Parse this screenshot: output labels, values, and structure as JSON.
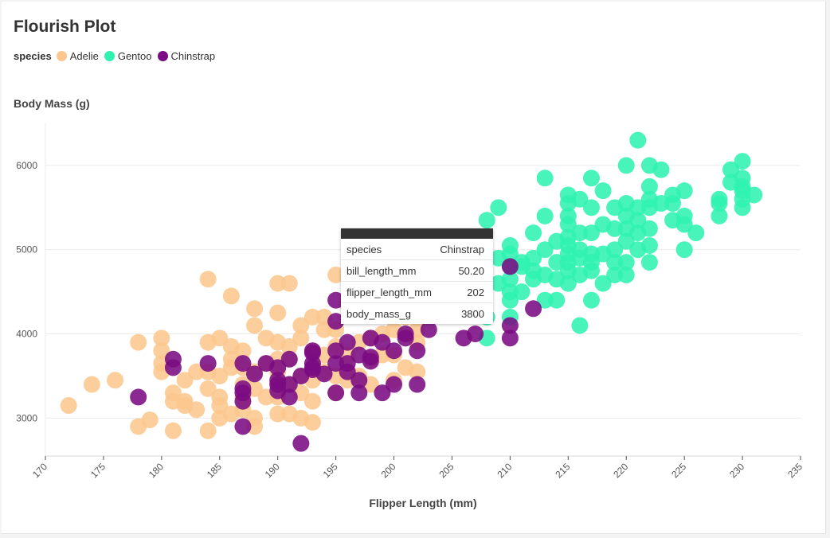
{
  "chart_data": {
    "type": "scatter",
    "title": "Flourish Plot",
    "xlabel": "Flipper Length (mm)",
    "ylabel": "Body Mass (g)",
    "xlim": [
      170,
      235
    ],
    "ylim": [
      2550,
      6500
    ],
    "xticks": [
      170,
      175,
      180,
      185,
      190,
      195,
      200,
      205,
      210,
      215,
      220,
      225,
      230,
      235
    ],
    "yticks": [
      3000,
      4000,
      5000,
      6000
    ],
    "grid": true,
    "legend": {
      "title": "species",
      "placement": "top-left",
      "entries": [
        "Adelie",
        "Gentoo",
        "Chinstrap"
      ]
    },
    "series": [
      {
        "name": "Adelie",
        "color": "#fcc78e",
        "points": [
          [
            172,
            3150
          ],
          [
            174,
            3400
          ],
          [
            176,
            3450
          ],
          [
            178,
            3900
          ],
          [
            178,
            2900
          ],
          [
            179,
            2980
          ],
          [
            180,
            3550
          ],
          [
            180,
            3650
          ],
          [
            180,
            3800
          ],
          [
            180,
            3950
          ],
          [
            181,
            3300
          ],
          [
            181,
            3200
          ],
          [
            181,
            2850
          ],
          [
            182,
            3200
          ],
          [
            182,
            3450
          ],
          [
            182,
            3150
          ],
          [
            183,
            3550
          ],
          [
            183,
            3100
          ],
          [
            184,
            3350
          ],
          [
            184,
            3550
          ],
          [
            184,
            3900
          ],
          [
            184,
            4650
          ],
          [
            184,
            2850
          ],
          [
            185,
            3000
          ],
          [
            185,
            3250
          ],
          [
            185,
            3500
          ],
          [
            185,
            3950
          ],
          [
            185,
            3150
          ],
          [
            186,
            3050
          ],
          [
            186,
            3600
          ],
          [
            186,
            3700
          ],
          [
            186,
            4450
          ],
          [
            186,
            3850
          ],
          [
            187,
            3400
          ],
          [
            187,
            3600
          ],
          [
            187,
            3800
          ],
          [
            187,
            3100
          ],
          [
            187,
            3250
          ],
          [
            188,
            3000
          ],
          [
            188,
            3350
          ],
          [
            188,
            3550
          ],
          [
            188,
            4300
          ],
          [
            188,
            4100
          ],
          [
            188,
            2900
          ],
          [
            189,
            3250
          ],
          [
            189,
            3650
          ],
          [
            189,
            3950
          ],
          [
            190,
            3050
          ],
          [
            190,
            3400
          ],
          [
            190,
            3700
          ],
          [
            190,
            3900
          ],
          [
            190,
            4250
          ],
          [
            190,
            4600
          ],
          [
            190,
            3250
          ],
          [
            190,
            3550
          ],
          [
            191,
            3050
          ],
          [
            191,
            3400
          ],
          [
            191,
            3700
          ],
          [
            191,
            4600
          ],
          [
            191,
            3850
          ],
          [
            192,
            3000
          ],
          [
            192,
            3500
          ],
          [
            192,
            3950
          ],
          [
            192,
            4100
          ],
          [
            192,
            3300
          ],
          [
            193,
            2950
          ],
          [
            193,
            3200
          ],
          [
            193,
            3450
          ],
          [
            193,
            3800
          ],
          [
            193,
            4200
          ],
          [
            194,
            3550
          ],
          [
            194,
            3750
          ],
          [
            194,
            4050
          ],
          [
            194,
            4200
          ],
          [
            195,
            3300
          ],
          [
            195,
            3500
          ],
          [
            195,
            3850
          ],
          [
            195,
            4050
          ],
          [
            195,
            4700
          ],
          [
            196,
            3550
          ],
          [
            196,
            3750
          ],
          [
            196,
            4350
          ],
          [
            196,
            3450
          ],
          [
            197,
            3500
          ],
          [
            197,
            3900
          ],
          [
            197,
            4300
          ],
          [
            198,
            3400
          ],
          [
            198,
            3700
          ],
          [
            198,
            3950
          ],
          [
            199,
            3750
          ],
          [
            199,
            4000
          ],
          [
            200,
            3450
          ],
          [
            200,
            3750
          ],
          [
            200,
            4050
          ],
          [
            201,
            3600
          ],
          [
            201,
            4200
          ],
          [
            202,
            3550
          ],
          [
            202,
            3900
          ],
          [
            202,
            4050
          ]
        ]
      },
      {
        "name": "Gentoo",
        "color": "#2ff2af",
        "points": [
          [
            208,
            4200
          ],
          [
            208,
            5350
          ],
          [
            208,
            3950
          ],
          [
            209,
            4600
          ],
          [
            209,
            4900
          ],
          [
            209,
            5500
          ],
          [
            210,
            4200
          ],
          [
            210,
            4400
          ],
          [
            210,
            4500
          ],
          [
            210,
            4650
          ],
          [
            210,
            4800
          ],
          [
            210,
            4950
          ],
          [
            210,
            5050
          ],
          [
            211,
            4500
          ],
          [
            211,
            4800
          ],
          [
            211,
            4850
          ],
          [
            212,
            4650
          ],
          [
            212,
            4750
          ],
          [
            212,
            4900
          ],
          [
            212,
            5200
          ],
          [
            213,
            4400
          ],
          [
            213,
            4700
          ],
          [
            213,
            5000
          ],
          [
            213,
            5400
          ],
          [
            213,
            5850
          ],
          [
            214,
            4400
          ],
          [
            214,
            4650
          ],
          [
            214,
            4850
          ],
          [
            214,
            5100
          ],
          [
            215,
            4600
          ],
          [
            215,
            4750
          ],
          [
            215,
            4850
          ],
          [
            215,
            4950
          ],
          [
            215,
            5050
          ],
          [
            215,
            5150
          ],
          [
            215,
            5300
          ],
          [
            215,
            5400
          ],
          [
            215,
            5550
          ],
          [
            215,
            5650
          ],
          [
            216,
            4700
          ],
          [
            216,
            4900
          ],
          [
            216,
            5000
          ],
          [
            216,
            5200
          ],
          [
            216,
            5600
          ],
          [
            216,
            4100
          ],
          [
            217,
            4750
          ],
          [
            217,
            4850
          ],
          [
            217,
            4950
          ],
          [
            217,
            5200
          ],
          [
            217,
            5500
          ],
          [
            217,
            5850
          ],
          [
            217,
            4400
          ],
          [
            218,
            4600
          ],
          [
            218,
            4950
          ],
          [
            218,
            5300
          ],
          [
            218,
            5700
          ],
          [
            219,
            4700
          ],
          [
            219,
            4850
          ],
          [
            219,
            5000
          ],
          [
            219,
            5250
          ],
          [
            219,
            5500
          ],
          [
            220,
            4700
          ],
          [
            220,
            4850
          ],
          [
            220,
            5100
          ],
          [
            220,
            5250
          ],
          [
            220,
            5400
          ],
          [
            220,
            5550
          ],
          [
            220,
            6000
          ],
          [
            221,
            5000
          ],
          [
            221,
            5200
          ],
          [
            221,
            5350
          ],
          [
            221,
            5500
          ],
          [
            221,
            6300
          ],
          [
            222,
            4850
          ],
          [
            222,
            5050
          ],
          [
            222,
            5250
          ],
          [
            222,
            5500
          ],
          [
            222,
            5600
          ],
          [
            222,
            5750
          ],
          [
            222,
            6000
          ],
          [
            223,
            5550
          ],
          [
            223,
            5950
          ],
          [
            224,
            5350
          ],
          [
            224,
            5550
          ],
          [
            224,
            5650
          ],
          [
            225,
            5000
          ],
          [
            225,
            5300
          ],
          [
            225,
            5400
          ],
          [
            225,
            5700
          ],
          [
            226,
            5200
          ],
          [
            228,
            5400
          ],
          [
            228,
            5550
          ],
          [
            228,
            5600
          ],
          [
            229,
            5800
          ],
          [
            229,
            5950
          ],
          [
            230,
            5500
          ],
          [
            230,
            5600
          ],
          [
            230,
            5700
          ],
          [
            230,
            5750
          ],
          [
            230,
            5850
          ],
          [
            230,
            6050
          ],
          [
            231,
            5650
          ]
        ]
      },
      {
        "name": "Chinstrap",
        "color": "#7a0b82",
        "points": [
          [
            178,
            3250
          ],
          [
            181,
            3700
          ],
          [
            181,
            3600
          ],
          [
            184,
            3650
          ],
          [
            187,
            3300
          ],
          [
            187,
            3350
          ],
          [
            187,
            3200
          ],
          [
            187,
            2900
          ],
          [
            187,
            3650
          ],
          [
            188,
            3525
          ],
          [
            189,
            3650
          ],
          [
            190,
            3450
          ],
          [
            190,
            3400
          ],
          [
            190,
            3600
          ],
          [
            190,
            3325
          ],
          [
            191,
            3700
          ],
          [
            191,
            3250
          ],
          [
            191,
            3400
          ],
          [
            192,
            2700
          ],
          [
            192,
            3500
          ],
          [
            193,
            3650
          ],
          [
            193,
            3775
          ],
          [
            193,
            3800
          ],
          [
            193,
            3575
          ],
          [
            193,
            3600
          ],
          [
            194,
            3525
          ],
          [
            195,
            3300
          ],
          [
            195,
            3650
          ],
          [
            195,
            3800
          ],
          [
            195,
            4400
          ],
          [
            195,
            4150
          ],
          [
            196,
            3900
          ],
          [
            196,
            3550
          ],
          [
            196,
            3650
          ],
          [
            197,
            3300
          ],
          [
            197,
            3450
          ],
          [
            197,
            3750
          ],
          [
            198,
            3675
          ],
          [
            198,
            3725
          ],
          [
            198,
            3950
          ],
          [
            199,
            3300
          ],
          [
            199,
            3900
          ],
          [
            200,
            3400
          ],
          [
            200,
            3800
          ],
          [
            201,
            3950
          ],
          [
            201,
            4000
          ],
          [
            202,
            3800
          ],
          [
            202,
            3400
          ],
          [
            203,
            4050
          ],
          [
            206,
            3950
          ],
          [
            207,
            4000
          ],
          [
            210,
            3950
          ],
          [
            210,
            4100
          ],
          [
            210,
            4800
          ],
          [
            212,
            4300
          ]
        ]
      }
    ]
  },
  "tooltip": {
    "rows": [
      {
        "key": "species",
        "value": "Chinstrap"
      },
      {
        "key": "bill_length_mm",
        "value": "50.20"
      },
      {
        "key": "flipper_length_mm",
        "value": "202"
      },
      {
        "key": "body_mass_g",
        "value": "3800"
      }
    ]
  }
}
